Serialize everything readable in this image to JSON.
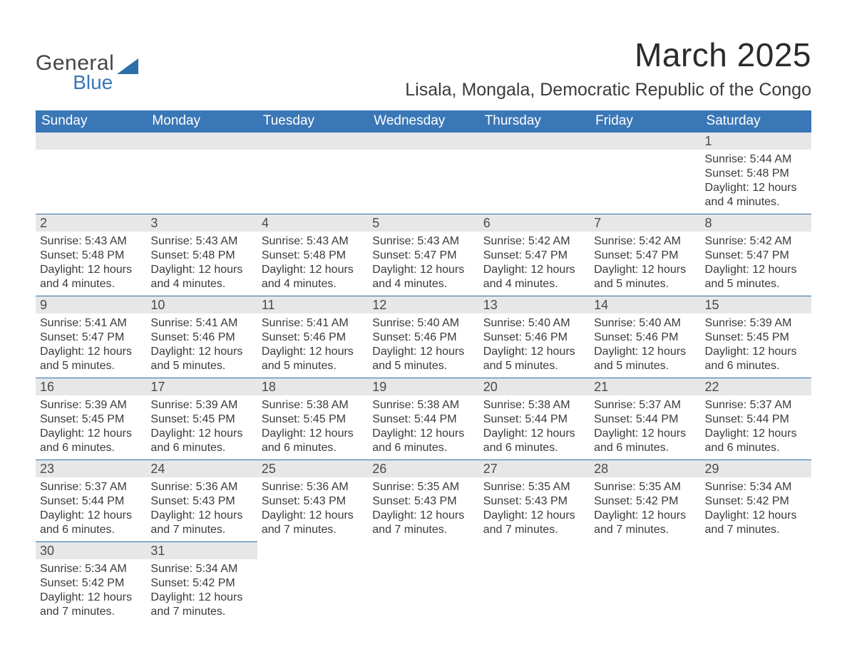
{
  "brand": {
    "line1": "General",
    "line2": "Blue",
    "colors": {
      "text": "#444444",
      "accent": "#3a77b6",
      "triangle": "#2b6fa8"
    }
  },
  "header": {
    "month_title": "March 2025",
    "location": "Lisala, Mongala, Democratic Republic of the Congo"
  },
  "calendar": {
    "colors": {
      "header_bg": "#3a77b6",
      "header_text": "#ffffff",
      "band_bg": "#e7e7e8",
      "rule": "#2b6fa8",
      "text": "#3a3a3a",
      "page_bg": "#ffffff"
    },
    "fonts": {
      "month_title_pt": 34,
      "location_pt": 19,
      "weekday_pt": 14,
      "daynum_pt": 14,
      "body_pt": 12
    },
    "weekdays": [
      "Sunday",
      "Monday",
      "Tuesday",
      "Wednesday",
      "Thursday",
      "Friday",
      "Saturday"
    ],
    "weeks": [
      [
        {
          "day": "",
          "sunrise": "",
          "sunset": "",
          "daylight": ""
        },
        {
          "day": "",
          "sunrise": "",
          "sunset": "",
          "daylight": ""
        },
        {
          "day": "",
          "sunrise": "",
          "sunset": "",
          "daylight": ""
        },
        {
          "day": "",
          "sunrise": "",
          "sunset": "",
          "daylight": ""
        },
        {
          "day": "",
          "sunrise": "",
          "sunset": "",
          "daylight": ""
        },
        {
          "day": "",
          "sunrise": "",
          "sunset": "",
          "daylight": ""
        },
        {
          "day": "1",
          "sunrise": "Sunrise: 5:44 AM",
          "sunset": "Sunset: 5:48 PM",
          "daylight": "Daylight: 12 hours and 4 minutes."
        }
      ],
      [
        {
          "day": "2",
          "sunrise": "Sunrise: 5:43 AM",
          "sunset": "Sunset: 5:48 PM",
          "daylight": "Daylight: 12 hours and 4 minutes."
        },
        {
          "day": "3",
          "sunrise": "Sunrise: 5:43 AM",
          "sunset": "Sunset: 5:48 PM",
          "daylight": "Daylight: 12 hours and 4 minutes."
        },
        {
          "day": "4",
          "sunrise": "Sunrise: 5:43 AM",
          "sunset": "Sunset: 5:48 PM",
          "daylight": "Daylight: 12 hours and 4 minutes."
        },
        {
          "day": "5",
          "sunrise": "Sunrise: 5:43 AM",
          "sunset": "Sunset: 5:47 PM",
          "daylight": "Daylight: 12 hours and 4 minutes."
        },
        {
          "day": "6",
          "sunrise": "Sunrise: 5:42 AM",
          "sunset": "Sunset: 5:47 PM",
          "daylight": "Daylight: 12 hours and 4 minutes."
        },
        {
          "day": "7",
          "sunrise": "Sunrise: 5:42 AM",
          "sunset": "Sunset: 5:47 PM",
          "daylight": "Daylight: 12 hours and 5 minutes."
        },
        {
          "day": "8",
          "sunrise": "Sunrise: 5:42 AM",
          "sunset": "Sunset: 5:47 PM",
          "daylight": "Daylight: 12 hours and 5 minutes."
        }
      ],
      [
        {
          "day": "9",
          "sunrise": "Sunrise: 5:41 AM",
          "sunset": "Sunset: 5:47 PM",
          "daylight": "Daylight: 12 hours and 5 minutes."
        },
        {
          "day": "10",
          "sunrise": "Sunrise: 5:41 AM",
          "sunset": "Sunset: 5:46 PM",
          "daylight": "Daylight: 12 hours and 5 minutes."
        },
        {
          "day": "11",
          "sunrise": "Sunrise: 5:41 AM",
          "sunset": "Sunset: 5:46 PM",
          "daylight": "Daylight: 12 hours and 5 minutes."
        },
        {
          "day": "12",
          "sunrise": "Sunrise: 5:40 AM",
          "sunset": "Sunset: 5:46 PM",
          "daylight": "Daylight: 12 hours and 5 minutes."
        },
        {
          "day": "13",
          "sunrise": "Sunrise: 5:40 AM",
          "sunset": "Sunset: 5:46 PM",
          "daylight": "Daylight: 12 hours and 5 minutes."
        },
        {
          "day": "14",
          "sunrise": "Sunrise: 5:40 AM",
          "sunset": "Sunset: 5:46 PM",
          "daylight": "Daylight: 12 hours and 5 minutes."
        },
        {
          "day": "15",
          "sunrise": "Sunrise: 5:39 AM",
          "sunset": "Sunset: 5:45 PM",
          "daylight": "Daylight: 12 hours and 6 minutes."
        }
      ],
      [
        {
          "day": "16",
          "sunrise": "Sunrise: 5:39 AM",
          "sunset": "Sunset: 5:45 PM",
          "daylight": "Daylight: 12 hours and 6 minutes."
        },
        {
          "day": "17",
          "sunrise": "Sunrise: 5:39 AM",
          "sunset": "Sunset: 5:45 PM",
          "daylight": "Daylight: 12 hours and 6 minutes."
        },
        {
          "day": "18",
          "sunrise": "Sunrise: 5:38 AM",
          "sunset": "Sunset: 5:45 PM",
          "daylight": "Daylight: 12 hours and 6 minutes."
        },
        {
          "day": "19",
          "sunrise": "Sunrise: 5:38 AM",
          "sunset": "Sunset: 5:44 PM",
          "daylight": "Daylight: 12 hours and 6 minutes."
        },
        {
          "day": "20",
          "sunrise": "Sunrise: 5:38 AM",
          "sunset": "Sunset: 5:44 PM",
          "daylight": "Daylight: 12 hours and 6 minutes."
        },
        {
          "day": "21",
          "sunrise": "Sunrise: 5:37 AM",
          "sunset": "Sunset: 5:44 PM",
          "daylight": "Daylight: 12 hours and 6 minutes."
        },
        {
          "day": "22",
          "sunrise": "Sunrise: 5:37 AM",
          "sunset": "Sunset: 5:44 PM",
          "daylight": "Daylight: 12 hours and 6 minutes."
        }
      ],
      [
        {
          "day": "23",
          "sunrise": "Sunrise: 5:37 AM",
          "sunset": "Sunset: 5:44 PM",
          "daylight": "Daylight: 12 hours and 6 minutes."
        },
        {
          "day": "24",
          "sunrise": "Sunrise: 5:36 AM",
          "sunset": "Sunset: 5:43 PM",
          "daylight": "Daylight: 12 hours and 7 minutes."
        },
        {
          "day": "25",
          "sunrise": "Sunrise: 5:36 AM",
          "sunset": "Sunset: 5:43 PM",
          "daylight": "Daylight: 12 hours and 7 minutes."
        },
        {
          "day": "26",
          "sunrise": "Sunrise: 5:35 AM",
          "sunset": "Sunset: 5:43 PM",
          "daylight": "Daylight: 12 hours and 7 minutes."
        },
        {
          "day": "27",
          "sunrise": "Sunrise: 5:35 AM",
          "sunset": "Sunset: 5:43 PM",
          "daylight": "Daylight: 12 hours and 7 minutes."
        },
        {
          "day": "28",
          "sunrise": "Sunrise: 5:35 AM",
          "sunset": "Sunset: 5:42 PM",
          "daylight": "Daylight: 12 hours and 7 minutes."
        },
        {
          "day": "29",
          "sunrise": "Sunrise: 5:34 AM",
          "sunset": "Sunset: 5:42 PM",
          "daylight": "Daylight: 12 hours and 7 minutes."
        }
      ],
      [
        {
          "day": "30",
          "sunrise": "Sunrise: 5:34 AM",
          "sunset": "Sunset: 5:42 PM",
          "daylight": "Daylight: 12 hours and 7 minutes."
        },
        {
          "day": "31",
          "sunrise": "Sunrise: 5:34 AM",
          "sunset": "Sunset: 5:42 PM",
          "daylight": "Daylight: 12 hours and 7 minutes."
        },
        {
          "day": "",
          "sunrise": "",
          "sunset": "",
          "daylight": ""
        },
        {
          "day": "",
          "sunrise": "",
          "sunset": "",
          "daylight": ""
        },
        {
          "day": "",
          "sunrise": "",
          "sunset": "",
          "daylight": ""
        },
        {
          "day": "",
          "sunrise": "",
          "sunset": "",
          "daylight": ""
        },
        {
          "day": "",
          "sunrise": "",
          "sunset": "",
          "daylight": ""
        }
      ]
    ]
  }
}
